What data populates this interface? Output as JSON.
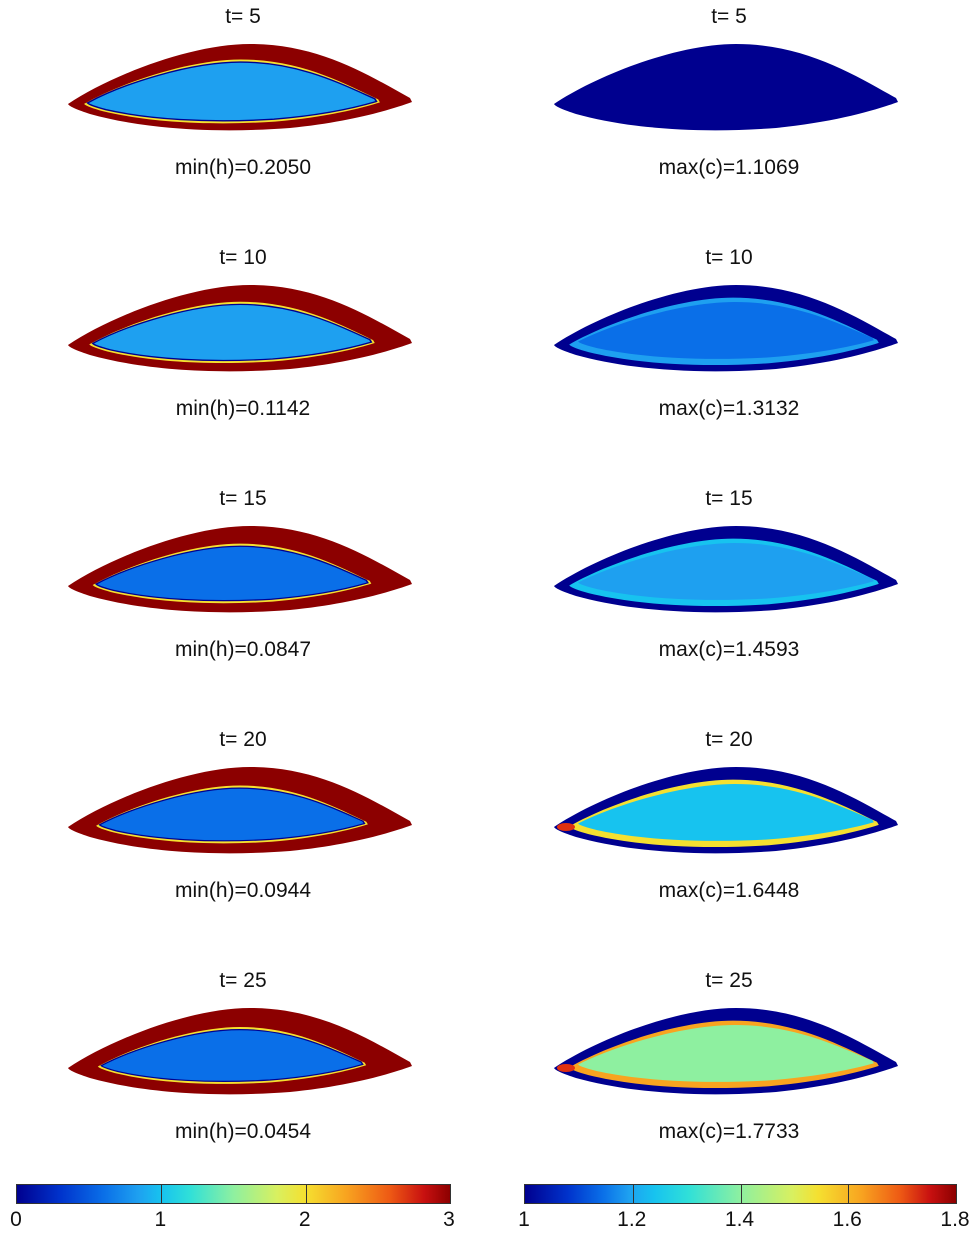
{
  "left_column": {
    "panels": [
      {
        "title": "t= 5",
        "caption": "min(h)=0.2050"
      },
      {
        "title": "t= 10",
        "caption": "min(h)=0.1142"
      },
      {
        "title": "t= 15",
        "caption": "min(h)=0.0847"
      },
      {
        "title": "t= 20",
        "caption": "min(h)=0.0944"
      },
      {
        "title": "t= 25",
        "caption": "min(h)=0.0454"
      }
    ],
    "colorbar": {
      "ticks": [
        "0",
        "1",
        "2",
        "3"
      ],
      "range": [
        0,
        3
      ]
    }
  },
  "right_column": {
    "panels": [
      {
        "title": "t= 5",
        "caption": "max(c)=1.1069"
      },
      {
        "title": "t= 10",
        "caption": "max(c)=1.3132"
      },
      {
        "title": "t= 15",
        "caption": "max(c)=1.4593"
      },
      {
        "title": "t= 20",
        "caption": "max(c)=1.6448"
      },
      {
        "title": "t= 25",
        "caption": "max(c)=1.7733"
      }
    ],
    "colorbar": {
      "ticks": [
        "1",
        "1.2",
        "1.4",
        "1.6",
        "1.8"
      ],
      "range": [
        1,
        1.8
      ]
    }
  },
  "colormap": "jet",
  "colors": {
    "dark_red": "#8c0000",
    "yellow": "#f5e030",
    "light_blue": "#1ea0f0",
    "mid_blue": "#0a6fe8",
    "dark_blue": "#00008f",
    "cyan": "#17c3ef",
    "green": "#8ef0a0",
    "orange": "#f8a420"
  }
}
